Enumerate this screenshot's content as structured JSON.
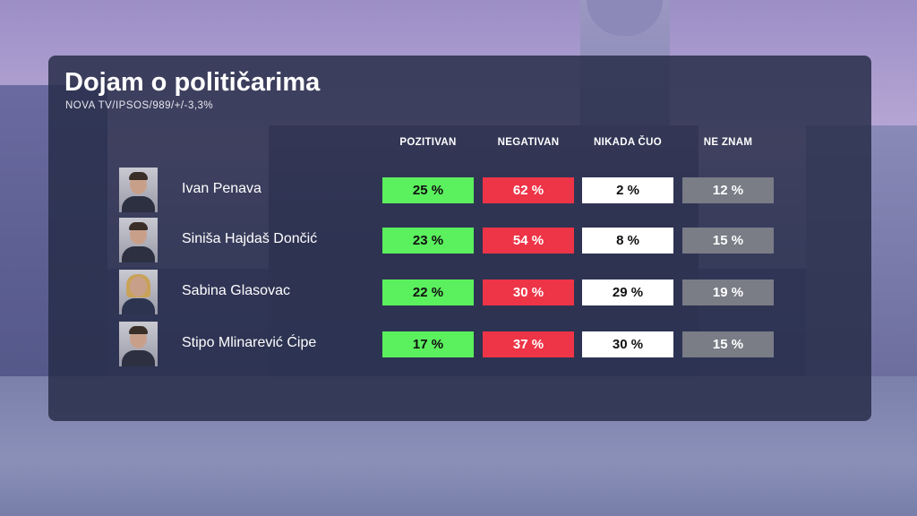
{
  "title": "Dojam o političarima",
  "subtitle": "NOVA TV/IPSOS/989/+/-3,3%",
  "columns": [
    "POZITIVAN",
    "NEGATIVAN",
    "NIKADA ČUO",
    "NE ZNAM"
  ],
  "colors": {
    "pozitivan": "#5bf05e",
    "negativan": "#ee3447",
    "nikada_cuo": "#ffffff",
    "ne_znam": "#7a7c86",
    "panel": "#262c48"
  },
  "rows": [
    {
      "name": "Ivan Penava",
      "avatar": "person-photo",
      "pozitivan": "25 %",
      "negativan": "62 %",
      "nikada_cuo": "2 %",
      "ne_znam": "12 %"
    },
    {
      "name": "Siniša Hajdaš Dončić",
      "avatar": "person-photo",
      "pozitivan": "23 %",
      "negativan": "54 %",
      "nikada_cuo": "8 %",
      "ne_znam": "15 %"
    },
    {
      "name": "Sabina Glasovac",
      "avatar": "person-photo",
      "pozitivan": "22 %",
      "negativan": "30 %",
      "nikada_cuo": "29 %",
      "ne_znam": "19 %"
    },
    {
      "name": "Stipo Mlinarević Ćipe",
      "avatar": "person-photo",
      "pozitivan": "17 %",
      "negativan": "37 %",
      "nikada_cuo": "30 %",
      "ne_znam": "15 %"
    }
  ]
}
